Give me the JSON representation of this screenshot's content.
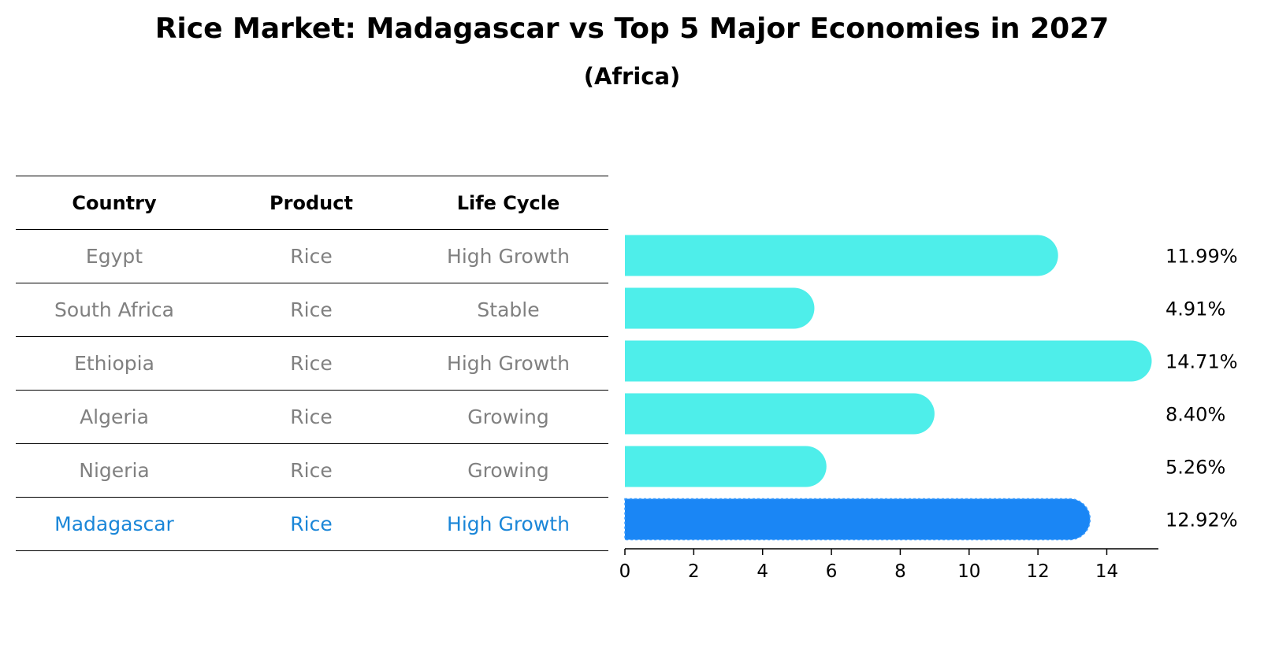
{
  "title": "Rice Market: Madagascar vs Top 5 Major Economies in 2027",
  "subtitle": "(Africa)",
  "table": {
    "headers": [
      "Country",
      "Product",
      "Life Cycle"
    ],
    "rows": [
      {
        "country": "Egypt",
        "product": "Rice",
        "life_cycle": "High Growth"
      },
      {
        "country": "South Africa",
        "product": "Rice",
        "life_cycle": "Stable"
      },
      {
        "country": "Ethiopia",
        "product": "Rice",
        "life_cycle": "High Growth"
      },
      {
        "country": "Algeria",
        "product": "Rice",
        "life_cycle": "Growing"
      },
      {
        "country": "Nigeria",
        "product": "Rice",
        "life_cycle": "Growing"
      },
      {
        "country": "Madagascar",
        "product": "Rice",
        "life_cycle": "High Growth"
      }
    ]
  },
  "chart_data": {
    "type": "bar",
    "orientation": "horizontal",
    "title": "Rice Market: Madagascar vs Top 5 Major Economies in 2027",
    "subtitle": "(Africa)",
    "categories": [
      "Egypt",
      "South Africa",
      "Ethiopia",
      "Algeria",
      "Nigeria",
      "Madagascar"
    ],
    "values": [
      11.99,
      4.91,
      14.71,
      8.4,
      5.26,
      12.92
    ],
    "value_labels": [
      "11.99%",
      "4.91%",
      "14.71%",
      "8.40%",
      "5.26%",
      "12.92%"
    ],
    "highlight": "Madagascar",
    "xlim": [
      0,
      15.5
    ],
    "xticks": [
      0,
      2,
      4,
      6,
      8,
      10,
      12,
      14
    ],
    "grid": false,
    "colors": {
      "default": "#4eeeea",
      "highlight": "#1a86f5",
      "highlight_text": "#1a86d8",
      "muted_text": "#808080"
    }
  }
}
